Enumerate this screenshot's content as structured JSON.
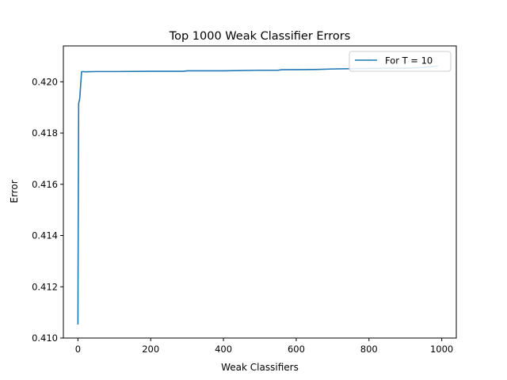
{
  "chart_data": {
    "type": "line",
    "title": "Top 1000 Weak Classifier Errors",
    "xlabel": "Weak Classifiers",
    "ylabel": "Error",
    "xlim": [
      -40,
      1040
    ],
    "ylim": [
      0.41,
      0.4214
    ],
    "xticks": [
      0,
      200,
      400,
      600,
      800,
      1000
    ],
    "yticks": [
      0.41,
      0.412,
      0.414,
      0.416,
      0.418,
      0.42
    ],
    "xtick_labels": [
      "0",
      "200",
      "400",
      "600",
      "800",
      "1000"
    ],
    "ytick_labels": [
      "0.410",
      "0.412",
      "0.414",
      "0.416",
      "0.418",
      "0.420"
    ],
    "grid": false,
    "legend_position": "top-right",
    "series": [
      {
        "name": "For T = 10",
        "color": "#1f77b4",
        "x": [
          0,
          1,
          2,
          5,
          10,
          15,
          20,
          50,
          100,
          200,
          290,
          300,
          400,
          500,
          550,
          560,
          650,
          700,
          800,
          900,
          950,
          990
        ],
        "y": [
          0.41053,
          0.41535,
          0.41915,
          0.41935,
          0.42039,
          0.4204,
          0.42039,
          0.4204,
          0.4204,
          0.42041,
          0.42041,
          0.42043,
          0.42043,
          0.42045,
          0.42045,
          0.42047,
          0.42048,
          0.4205,
          0.42052,
          0.42053,
          0.42056,
          0.42062
        ]
      }
    ]
  }
}
